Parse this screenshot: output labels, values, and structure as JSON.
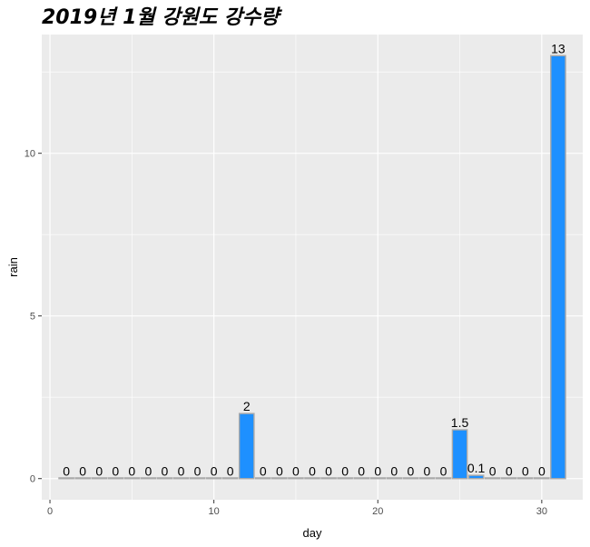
{
  "chart_data": {
    "type": "bar",
    "title": "2019년 1월 강원도 강수량",
    "xlabel": "day",
    "ylabel": "rain",
    "x": [
      1,
      2,
      3,
      4,
      5,
      6,
      7,
      8,
      9,
      10,
      11,
      12,
      13,
      14,
      15,
      16,
      17,
      18,
      19,
      20,
      21,
      22,
      23,
      24,
      25,
      26,
      27,
      28,
      29,
      30,
      31
    ],
    "values": [
      0,
      0,
      0,
      0,
      0,
      0,
      0,
      0,
      0,
      0,
      0,
      2,
      0,
      0,
      0,
      0,
      0,
      0,
      0,
      0,
      0,
      0,
      0,
      0,
      1.5,
      0.1,
      0,
      0,
      0,
      0,
      13
    ],
    "data_labels": [
      "0",
      "0",
      "0",
      "0",
      "0",
      "0",
      "0",
      "0",
      "0",
      "0",
      "0",
      "2",
      "0",
      "0",
      "0",
      "0",
      "0",
      "0",
      "0",
      "0",
      "0",
      "0",
      "0",
      "0",
      "1.5",
      "0.1",
      "0",
      "0",
      "0",
      "0",
      "13"
    ],
    "xlim": [
      -0.5,
      32.5
    ],
    "ylim": [
      -0.65,
      13.65
    ],
    "x_ticks": [
      0,
      10,
      20,
      30
    ],
    "x_tick_labels": [
      "0",
      "10",
      "20",
      "30"
    ],
    "y_ticks": [
      0,
      5,
      10
    ],
    "y_tick_labels": [
      "0",
      "5",
      "10"
    ],
    "grid": true,
    "legend": "none",
    "colors": {
      "bar_fill": "#1e90ff",
      "bar_outline": "#a9a9a9",
      "panel_background": "#ebebeb",
      "grid": "#ffffff"
    }
  }
}
